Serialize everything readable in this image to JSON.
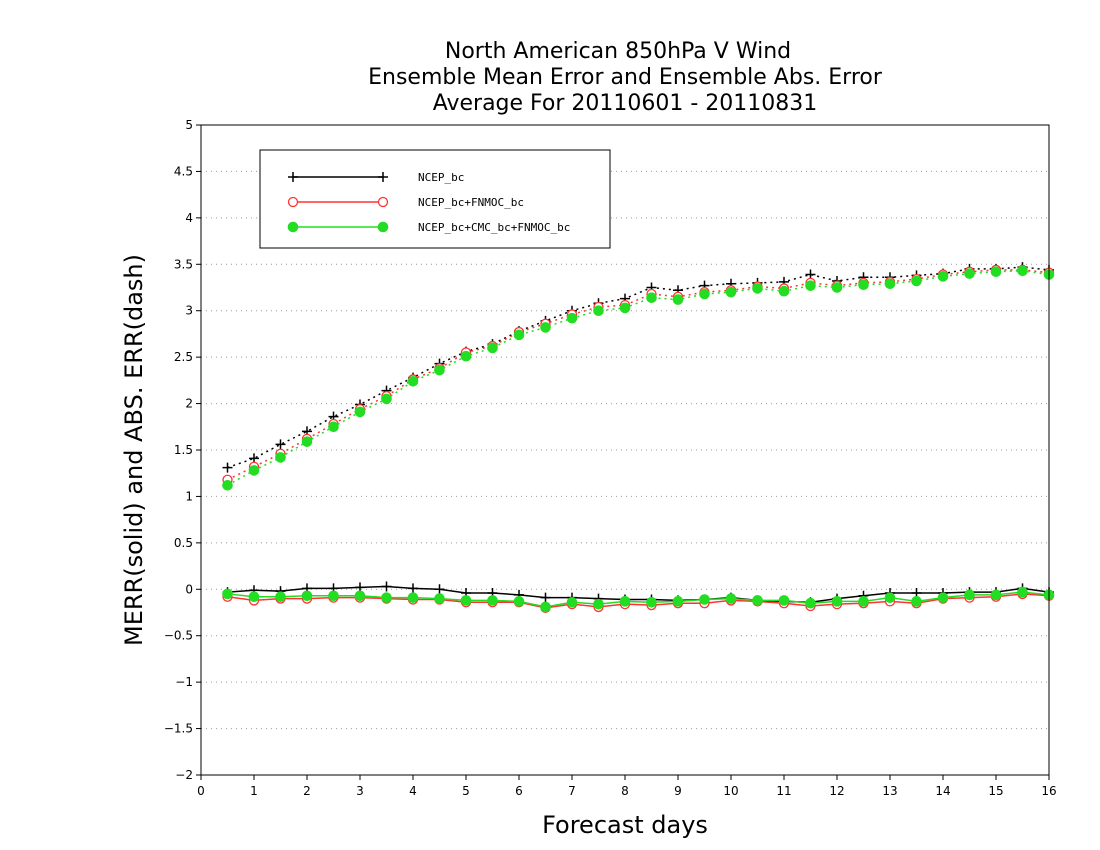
{
  "chart_data": {
    "type": "line",
    "title_lines": [
      "North American 850hPa V Wind",
      "Ensemble Mean Error and Ensemble Abs. Error",
      "Average For 20110601 - 20110831"
    ],
    "xlabel": "Forecast days",
    "ylabel": "MERR(solid) and ABS. ERR(dash)",
    "xlim": [
      0,
      16
    ],
    "ylim": [
      -2,
      5
    ],
    "x_ticks": [
      "0",
      "1",
      "2",
      "3",
      "4",
      "5",
      "6",
      "7",
      "8",
      "9",
      "10",
      "11",
      "12",
      "13",
      "14",
      "15",
      "16"
    ],
    "y_ticks": [
      "5",
      "4.5",
      "4",
      "3.5",
      "3",
      "2.5",
      "2",
      "1.5",
      "1",
      "0.5",
      "0",
      "−0.5",
      "−1",
      "−1.5",
      "−2"
    ],
    "y_tick_values": [
      5,
      4.5,
      4,
      3.5,
      3,
      2.5,
      2,
      1.5,
      1,
      0.5,
      0,
      -0.5,
      -1,
      -1.5,
      -2
    ],
    "grid": "horizontal dotted",
    "legend_position": "top-left",
    "x": [
      0.5,
      1,
      1.5,
      2,
      2.5,
      3,
      3.5,
      4,
      4.5,
      5,
      5.5,
      6,
      6.5,
      7,
      7.5,
      8,
      8.5,
      9,
      9.5,
      10,
      10.5,
      11,
      11.5,
      12,
      12.5,
      13,
      13.5,
      14,
      14.5,
      15,
      15.5,
      16
    ],
    "series": [
      {
        "name": "NCEP_bc",
        "color": "#000000",
        "marker": "plus",
        "mean_error": [
          -0.03,
          -0.01,
          -0.02,
          0.01,
          0.01,
          0.02,
          0.03,
          0.01,
          0.0,
          -0.04,
          -0.04,
          -0.06,
          -0.09,
          -0.09,
          -0.1,
          -0.11,
          -0.11,
          -0.12,
          -0.11,
          -0.09,
          -0.12,
          -0.13,
          -0.14,
          -0.1,
          -0.07,
          -0.04,
          -0.04,
          -0.04,
          -0.03,
          -0.03,
          0.01,
          -0.03
        ],
        "abs_error": [
          1.31,
          1.41,
          1.56,
          1.7,
          1.86,
          1.99,
          2.14,
          2.28,
          2.43,
          2.56,
          2.64,
          2.78,
          2.89,
          3.0,
          3.08,
          3.13,
          3.25,
          3.22,
          3.27,
          3.29,
          3.3,
          3.31,
          3.39,
          3.32,
          3.36,
          3.36,
          3.38,
          3.4,
          3.45,
          3.45,
          3.47,
          3.44
        ]
      },
      {
        "name": "NCEP_bc+FNMOC_bc",
        "color": "#ff3333",
        "marker": "open-circle",
        "mean_error": [
          -0.08,
          -0.12,
          -0.1,
          -0.1,
          -0.09,
          -0.09,
          -0.1,
          -0.11,
          -0.11,
          -0.14,
          -0.14,
          -0.14,
          -0.2,
          -0.16,
          -0.19,
          -0.16,
          -0.17,
          -0.15,
          -0.15,
          -0.12,
          -0.13,
          -0.15,
          -0.18,
          -0.16,
          -0.15,
          -0.13,
          -0.15,
          -0.1,
          -0.09,
          -0.08,
          -0.05,
          -0.07
        ],
        "abs_error": [
          1.18,
          1.32,
          1.46,
          1.62,
          1.78,
          1.94,
          2.08,
          2.26,
          2.38,
          2.55,
          2.62,
          2.77,
          2.86,
          2.96,
          3.04,
          3.06,
          3.18,
          3.15,
          3.2,
          3.22,
          3.26,
          3.24,
          3.3,
          3.27,
          3.3,
          3.31,
          3.34,
          3.39,
          3.42,
          3.44,
          3.44,
          3.41
        ]
      },
      {
        "name": "NCEP_bc+CMC_bc+FNMOC_bc",
        "color": "#22dd22",
        "marker": "filled-circle",
        "mean_error": [
          -0.05,
          -0.08,
          -0.08,
          -0.07,
          -0.07,
          -0.07,
          -0.09,
          -0.09,
          -0.1,
          -0.12,
          -0.12,
          -0.13,
          -0.19,
          -0.14,
          -0.16,
          -0.13,
          -0.14,
          -0.13,
          -0.11,
          -0.1,
          -0.12,
          -0.12,
          -0.15,
          -0.13,
          -0.13,
          -0.09,
          -0.13,
          -0.09,
          -0.06,
          -0.06,
          -0.03,
          -0.06
        ],
        "abs_error": [
          1.12,
          1.28,
          1.42,
          1.59,
          1.75,
          1.91,
          2.05,
          2.24,
          2.36,
          2.51,
          2.6,
          2.74,
          2.82,
          2.92,
          3.0,
          3.03,
          3.14,
          3.12,
          3.18,
          3.2,
          3.24,
          3.21,
          3.27,
          3.25,
          3.28,
          3.29,
          3.32,
          3.37,
          3.4,
          3.42,
          3.43,
          3.39
        ]
      }
    ]
  }
}
